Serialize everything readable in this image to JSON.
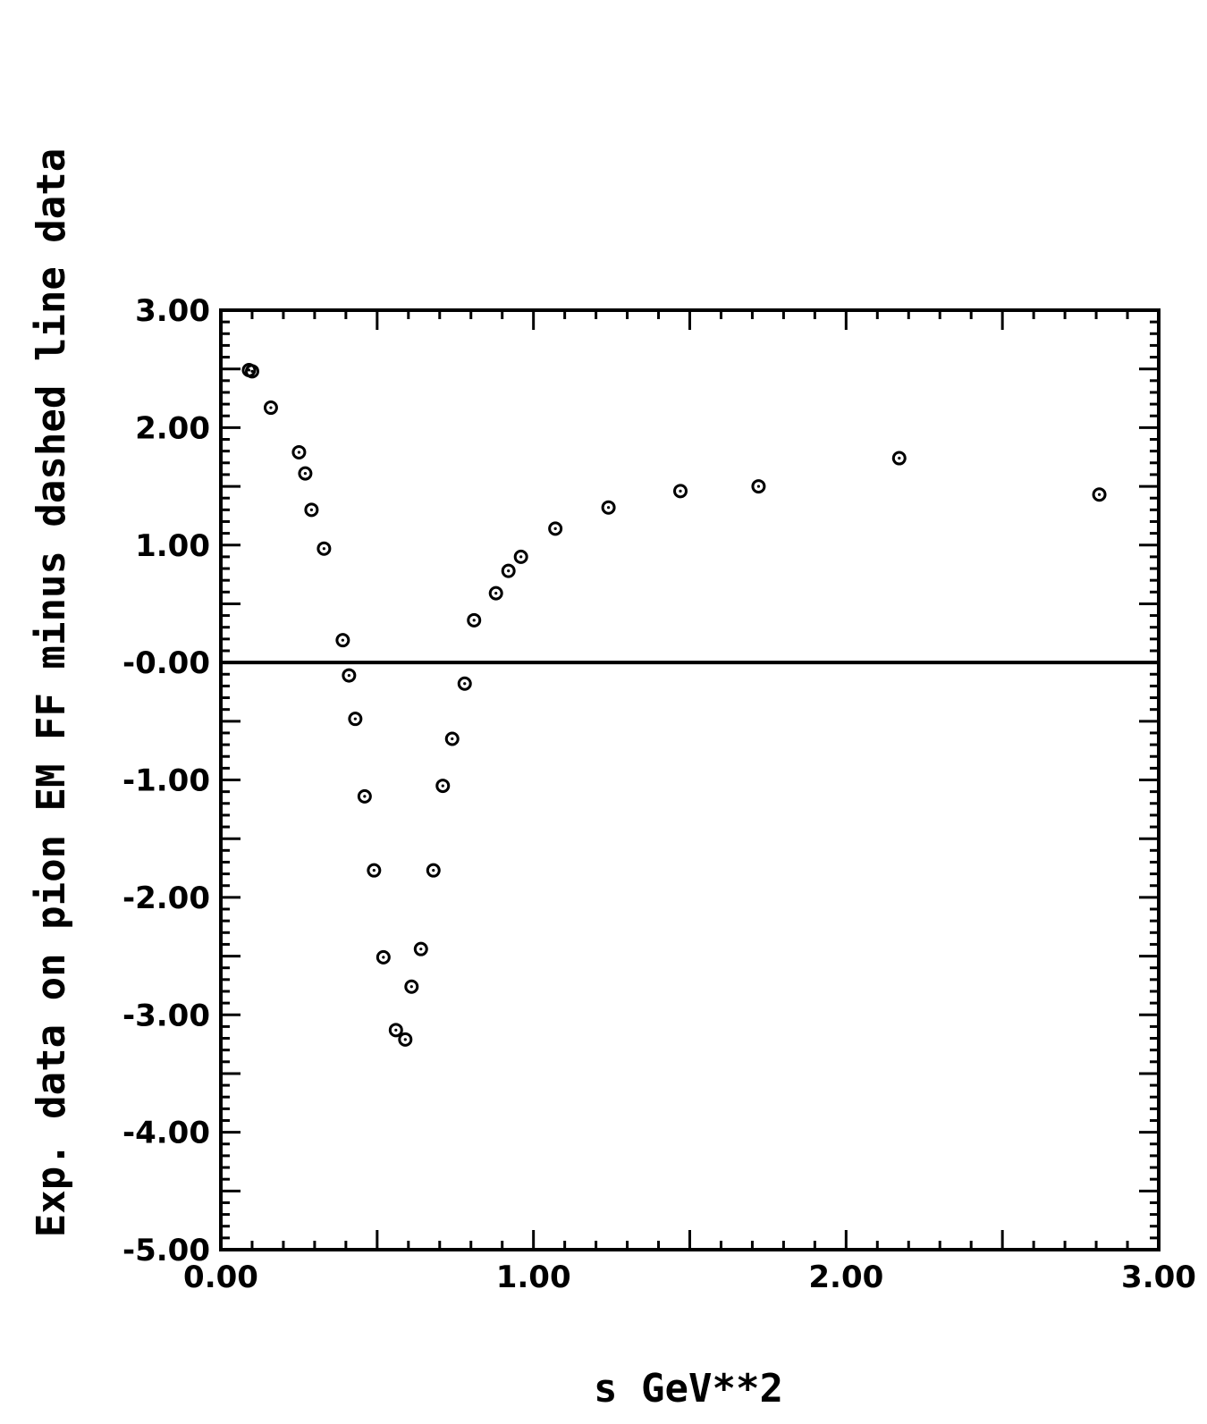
{
  "chart_data": {
    "type": "scatter",
    "title": "",
    "xlabel": "s  GeV**2",
    "ylabel": "Exp. data on pion EM FF minus dashed line data",
    "xlim": [
      0.0,
      3.0
    ],
    "ylim": [
      -5.0,
      3.0
    ],
    "x_ticks": [
      "0.00",
      "1.00",
      "2.00",
      "3.00"
    ],
    "y_ticks": [
      "3.00",
      "2.00",
      "1.00",
      "-0.00",
      "-1.00",
      "-2.00",
      "-3.00",
      "-4.00",
      "-5.00"
    ],
    "reference_line_y": 0.0,
    "grid": false,
    "legend": "none",
    "marker_color": "#000000",
    "series": [
      {
        "x": [
          0.09,
          0.1,
          0.16,
          0.25,
          0.27,
          0.29,
          0.33,
          0.39,
          0.41,
          0.43,
          0.46,
          0.49,
          0.52,
          0.56,
          0.59,
          0.61,
          0.64,
          0.68,
          0.71,
          0.74,
          0.78,
          0.81,
          0.88,
          0.92,
          0.96,
          1.07,
          1.24,
          1.47,
          1.72,
          2.17,
          2.81
        ],
        "y": [
          2.49,
          2.48,
          2.17,
          1.79,
          1.61,
          1.3,
          0.97,
          0.19,
          -0.11,
          -0.48,
          -1.14,
          -1.77,
          -2.51,
          -3.13,
          -3.21,
          -2.76,
          -2.44,
          -1.77,
          -1.05,
          -0.65,
          -0.18,
          0.36,
          0.59,
          0.78,
          0.9,
          1.14,
          1.32,
          1.46,
          1.5,
          1.74,
          1.43
        ]
      }
    ]
  }
}
